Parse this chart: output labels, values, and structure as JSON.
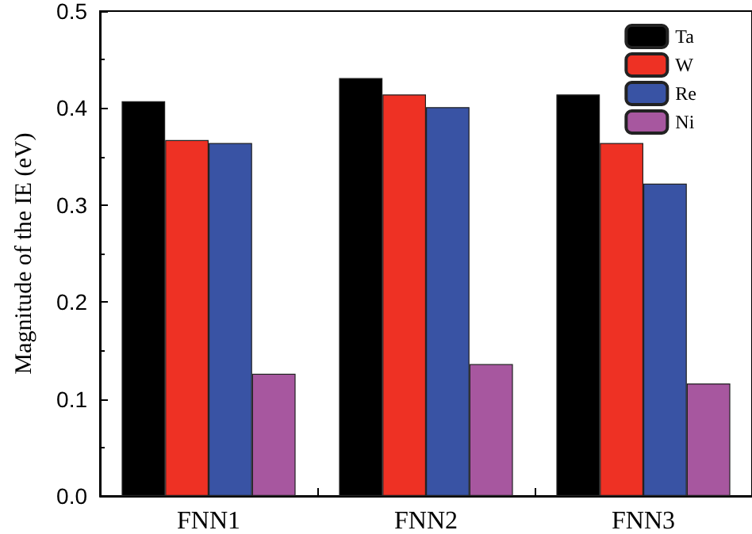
{
  "chart_data": {
    "type": "bar",
    "ylabel": "Magnitude of the IE (eV)",
    "categories": [
      "FNN1",
      "FNN2",
      "FNN3"
    ],
    "series": [
      {
        "name": "Ta",
        "color": "#000000",
        "values": [
          0.407,
          0.431,
          0.414
        ]
      },
      {
        "name": "W",
        "color": "#ee3124",
        "values": [
          0.367,
          0.414,
          0.364
        ]
      },
      {
        "name": "Re",
        "color": "#3953a4",
        "values": [
          0.364,
          0.401,
          0.322
        ]
      },
      {
        "name": "Ni",
        "color": "#a7579f",
        "values": [
          0.126,
          0.136,
          0.116
        ]
      }
    ],
    "ylim": [
      0,
      0.5
    ],
    "yticks": [
      {
        "value": 0,
        "label": "0.0"
      },
      0.1,
      0.2,
      0.3,
      0.4,
      0.5
    ],
    "legend": "top right",
    "grid": false
  }
}
